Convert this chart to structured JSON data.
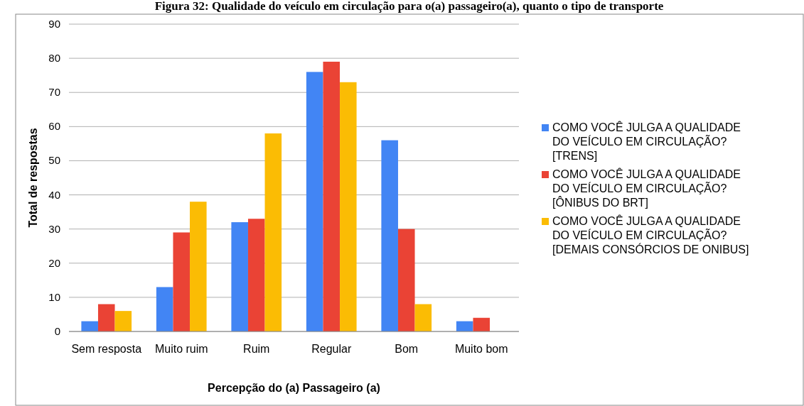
{
  "chart_data": {
    "type": "bar",
    "title": "Figura 32: Qualidade do veículo em circulação para o(a) passageiro(a), quanto o tipo de transporte",
    "xlabel": "Percepção do (a) Passageiro (a)",
    "ylabel": "Total de respostas",
    "categories": [
      "Sem resposta",
      "Muito ruim",
      "Ruim",
      "Regular",
      "Bom",
      "Muito bom"
    ],
    "series": [
      {
        "name": "COMO VOCÊ JULGA A QUALIDADE DO VEÍCULO EM CIRCULAÇÃO? [TRENS]",
        "color": "#4285f4",
        "values": [
          3,
          13,
          32,
          76,
          56,
          3
        ]
      },
      {
        "name": "COMO VOCÊ JULGA A QUALIDADE DO VEÍCULO EM CIRCULAÇÃO? [ÔNIBUS DO BRT]",
        "color": "#ea4335",
        "values": [
          8,
          29,
          33,
          79,
          30,
          4
        ]
      },
      {
        "name": "COMO VOCÊ JULGA A QUALIDADE DO VEÍCULO EM CIRCULAÇÃO? [DEMAIS CONSÓRCIOS DE ONIBUS]",
        "color": "#fbbc04",
        "values": [
          6,
          38,
          58,
          73,
          8,
          0
        ]
      }
    ],
    "ylim": [
      0,
      90
    ],
    "yticks": [
      0,
      10,
      20,
      30,
      40,
      50,
      60,
      70,
      80,
      90
    ],
    "grid": "y",
    "legend": "right"
  }
}
